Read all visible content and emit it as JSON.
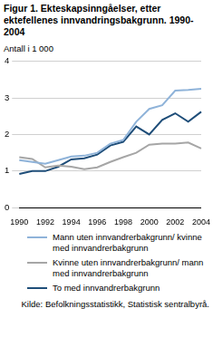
{
  "chart_data": {
    "type": "line",
    "title": "Figur 1. Ekteskapsinngåelser, etter ektefellenes innvandringsbakgrunn. 1990-2004",
    "y_label": "Antall i 1 000",
    "source": "Kilde: Befolkningsstatistikk, Statistisk sentralbyrå.",
    "categories": [
      "1990",
      null,
      "1992",
      null,
      "1994",
      null,
      "1996",
      null,
      "1998",
      null,
      "2000",
      null,
      "2002",
      null,
      "2004"
    ],
    "series": [
      {
        "name": "Mann uten innvandrerbakgrunn/ kvinne med innvandrerbakgrunn",
        "color": "#8fb3d9",
        "values": [
          1.3,
          1.25,
          1.2,
          1.3,
          1.4,
          1.42,
          1.5,
          1.75,
          1.85,
          2.35,
          2.7,
          2.8,
          3.2,
          3.22,
          3.25
        ]
      },
      {
        "name": "Kvinne uten innvandrerbakgrunn/ mann med innvandrerbakgrunn",
        "color": "#a6a6a6",
        "values": [
          1.38,
          1.33,
          1.1,
          1.15,
          1.12,
          1.05,
          1.1,
          1.25,
          1.38,
          1.5,
          1.72,
          1.75,
          1.75,
          1.78,
          1.62
        ]
      },
      {
        "name": "To med innvandrerbakgrunn",
        "color": "#1f4e79",
        "values": [
          0.92,
          1.0,
          1.0,
          1.12,
          1.32,
          1.35,
          1.45,
          1.7,
          1.8,
          2.22,
          2.0,
          2.4,
          2.58,
          2.35,
          2.62
        ]
      }
    ],
    "ylim": [
      0,
      4
    ],
    "yticks": [
      0,
      1,
      2,
      3,
      4
    ],
    "grid": true,
    "legend": "bottom"
  }
}
